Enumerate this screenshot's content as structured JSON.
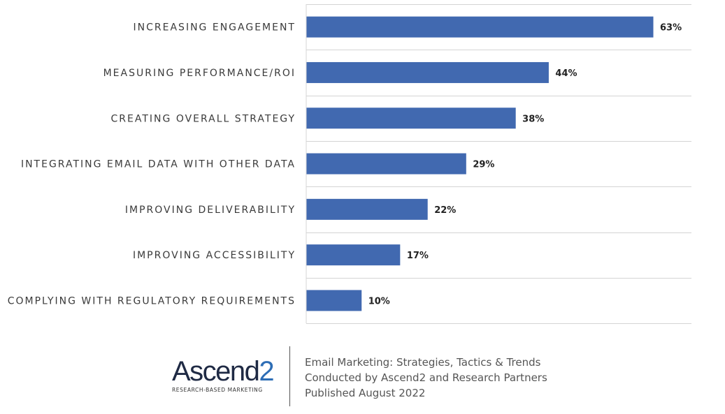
{
  "chart_data": {
    "type": "bar",
    "orientation": "horizontal",
    "categories": [
      "INCREASING ENGAGEMENT",
      "MEASURING PERFORMANCE/ROI",
      "CREATING OVERALL STRATEGY",
      "INTEGRATING EMAIL DATA WITH OTHER DATA",
      "IMPROVING DELIVERABILITY",
      "IMPROVING ACCESSIBILITY",
      "COMPLYING WITH REGULATORY REQUIREMENTS"
    ],
    "values": [
      63,
      44,
      38,
      29,
      22,
      17,
      10
    ],
    "value_labels": [
      "63%",
      "44%",
      "38%",
      "29%",
      "22%",
      "17%",
      "10%"
    ],
    "xlim": [
      0,
      70
    ],
    "grid": true,
    "bar_color": "#4169b0",
    "grid_color": "#d4d4d4"
  },
  "footer": {
    "logo": {
      "word_main": "Ascend",
      "word_accent": "2",
      "tagline": "RESEARCH-BASED MARKETING",
      "accent_color": "#2d6db5"
    },
    "credits": {
      "line1": "Email Marketing: Strategies, Tactics & Trends",
      "line2": "Conducted by Ascend2 and Research Partners",
      "line3": "Published August 2022"
    }
  }
}
